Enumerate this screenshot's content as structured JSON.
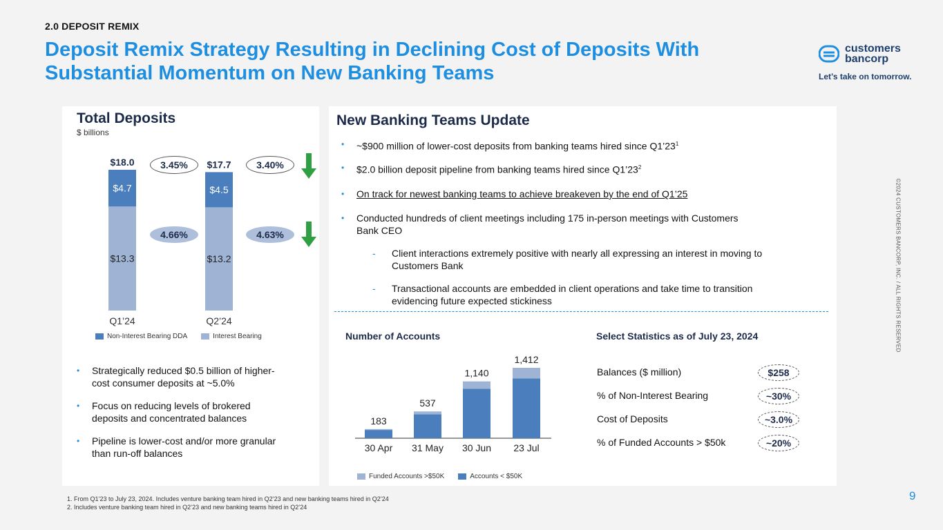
{
  "header": {
    "section": "2.0 DEPOSIT REMIX",
    "title_line1": "Deposit Remix Strategy Resulting in Declining Cost of Deposits With",
    "title_line2": "Substantial Momentum on New Banking Teams",
    "logo_line1": "customers",
    "logo_line2": "bancorp",
    "tagline": "Let’s take on tomorrow."
  },
  "side_text": "©2024 CUSTOMERS BANCORP, INC. / ALL RIGHTS RESERVED",
  "page_number": "9",
  "colors": {
    "accent": "#1e8fe0",
    "dark_blue": "#4a7ebd",
    "light_blue": "#9fb3d4",
    "arrow_green": "#2ea043"
  },
  "left": {
    "title": "Total Deposits",
    "subtitle": "$ billions",
    "bullets": [
      [
        "Strategically reduced $0.5 billion of higher-",
        "cost consumer deposits at ~5.0%"
      ],
      [
        "Focus on reducing levels of brokered",
        "deposits and concentrated balances"
      ],
      [
        "Pipeline is lower-cost and/or more granular",
        "than run-off balances"
      ]
    ]
  },
  "right": {
    "title": "New Banking Teams Update",
    "bullets": [
      {
        "text": "~$900 million of lower-cost deposits from banking teams hired since Q1’23",
        "sup": "1"
      },
      {
        "text": "$2.0 billion deposit pipeline from banking teams hired since Q1’23",
        "sup": "2"
      },
      {
        "text": "On track for newest banking teams to achieve breakeven by the end of Q1’25",
        "sup": ""
      },
      {
        "line1": "Conducted hundreds of client meetings including 175 in-person meetings with Customers",
        "line2": "Bank CEO"
      }
    ],
    "sub_bullets": [
      [
        "Client interactions extremely positive with nearly all expressing an interest in moving to",
        "Customers Bank"
      ],
      [
        "Transactional accounts are embedded in client operations and take time to transition",
        "evidencing future expected stickiness"
      ]
    ],
    "accounts_title": "Number of Accounts",
    "stats_title": "Select Statistics as of July 23, 2024",
    "stats": [
      {
        "label": "Balances ($ million)",
        "value": "$258"
      },
      {
        "label": "% of Non-Interest Bearing",
        "value": "~30%"
      },
      {
        "label": "Cost of Deposits",
        "value": "~3.0%"
      },
      {
        "label": "% of Funded Accounts > $50k",
        "value": "~20%"
      }
    ]
  },
  "footnotes": [
    "1.    From Q1’23 to July 23, 2024. Includes venture banking team hired in Q2’23 and new banking teams hired in Q2’24",
    "2.    Includes venture banking team hired in Q2’23 and new banking teams hired in Q2’24"
  ],
  "chart_data": [
    {
      "type": "bar",
      "stacked": true,
      "title": "Total Deposits",
      "ylabel": "$ billions",
      "categories": [
        "Q1’24",
        "Q2’24"
      ],
      "totals": [
        "$18.0",
        "$17.7"
      ],
      "series": [
        {
          "name": "Non-Interest Bearing DDA",
          "values": [
            4.7,
            4.5
          ],
          "labels": [
            "$4.7",
            "$4.5"
          ],
          "color": "#4a7ebd"
        },
        {
          "name": "Interest Bearing",
          "values": [
            13.3,
            13.2
          ],
          "labels": [
            "$13.3",
            "$13.2"
          ],
          "color": "#9fb3d4"
        }
      ],
      "annotations": {
        "total_cost": [
          "3.45%",
          "3.40%"
        ],
        "interest_bearing_cost": [
          "4.66%",
          "4.63%"
        ]
      },
      "ylim": [
        0,
        18.0
      ]
    },
    {
      "type": "bar",
      "stacked": true,
      "title": "Number of Accounts",
      "categories": [
        "30 Apr",
        "31 May",
        "30 Jun",
        "23 Jul"
      ],
      "totals": [
        183,
        537,
        1140,
        1412
      ],
      "total_labels": [
        "183",
        "537",
        "1,140",
        "1,412"
      ],
      "series": [
        {
          "name": "Accounts < $50K",
          "values": [
            165,
            480,
            990,
            1200
          ],
          "color": "#4a7ebd"
        },
        {
          "name": "Funded Accounts >$50K",
          "values": [
            18,
            57,
            150,
            212
          ],
          "color": "#9fb3d4"
        }
      ],
      "ylim": [
        0,
        1412
      ]
    }
  ]
}
